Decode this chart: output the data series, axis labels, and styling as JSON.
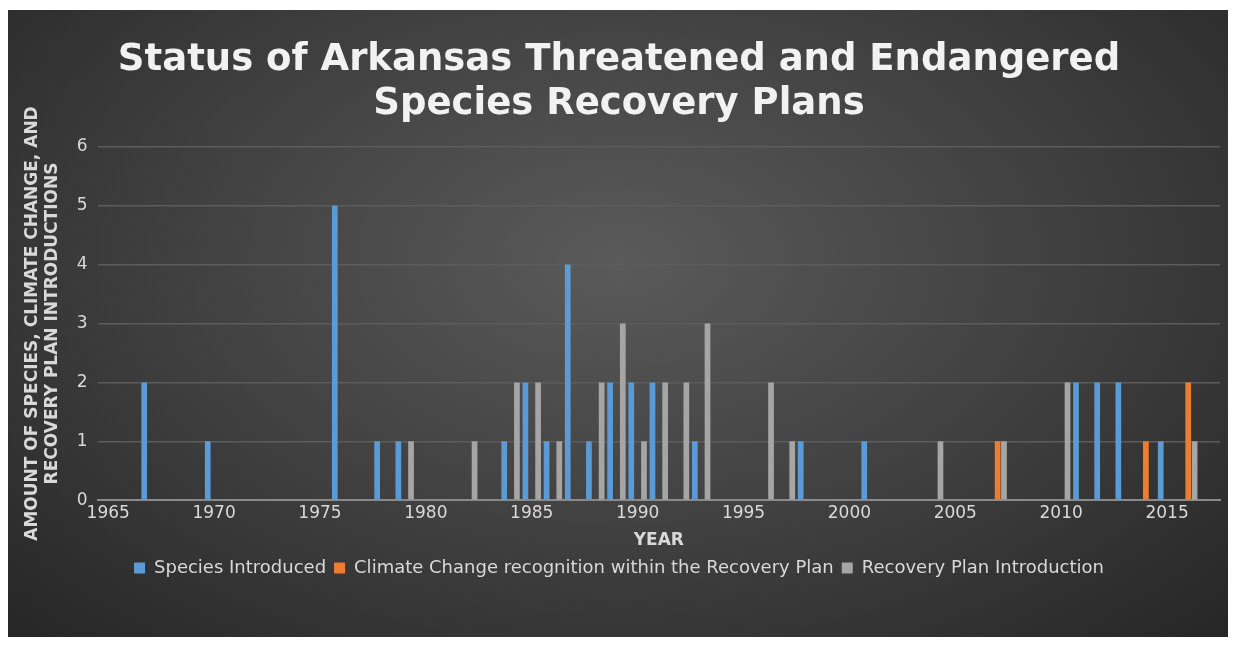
{
  "chart_data": {
    "type": "bar",
    "title": "Status of Arkansas Threatened and Endangered Species Recovery Plans",
    "xlabel": "YEAR",
    "ylabel": "AMOUNT OF SPECIES, CLIMATE CHANGE, AND RECOVERY PLAN INTRODUCTIONS",
    "series": [
      {
        "name": "Species Introduced",
        "color": "#5b9bd5",
        "x": [
          1967,
          1970,
          1976,
          1978,
          1979,
          1984,
          1985,
          1986,
          1987,
          1988,
          1989,
          1990,
          1991,
          1993,
          1998,
          2001,
          2011,
          2012,
          2013,
          2015
        ],
        "values": [
          2,
          1,
          5,
          1,
          1,
          1,
          2,
          1,
          4,
          1,
          2,
          2,
          2,
          1,
          1,
          1,
          2,
          2,
          2,
          1
        ]
      },
      {
        "name": "Climate Change recognition within the Recovery Plan",
        "color": "#ed7d31",
        "x": [
          2007,
          2014,
          2016
        ],
        "values": [
          1,
          1,
          2
        ]
      },
      {
        "name": "Recovery Plan Introduction",
        "color": "#a5a5a5",
        "x": [
          1979,
          1982,
          1984,
          1985,
          1986,
          1988,
          1989,
          1990,
          1991,
          1992,
          1993,
          1996,
          1997,
          2004,
          2007,
          2010,
          2016
        ],
        "values": [
          1,
          1,
          2,
          2,
          1,
          2,
          3,
          1,
          2,
          2,
          3,
          2,
          1,
          1,
          1,
          2,
          1
        ]
      }
    ],
    "xlim": [
      1964.5,
      2017.5
    ],
    "xticks": [
      1965,
      1970,
      1975,
      1980,
      1985,
      1990,
      1995,
      2000,
      2005,
      2010,
      2015
    ],
    "ylim": [
      0,
      6
    ],
    "yticks": [
      0,
      1,
      2,
      3,
      4,
      5,
      6
    ],
    "grid": "y",
    "legend": "bottom"
  }
}
